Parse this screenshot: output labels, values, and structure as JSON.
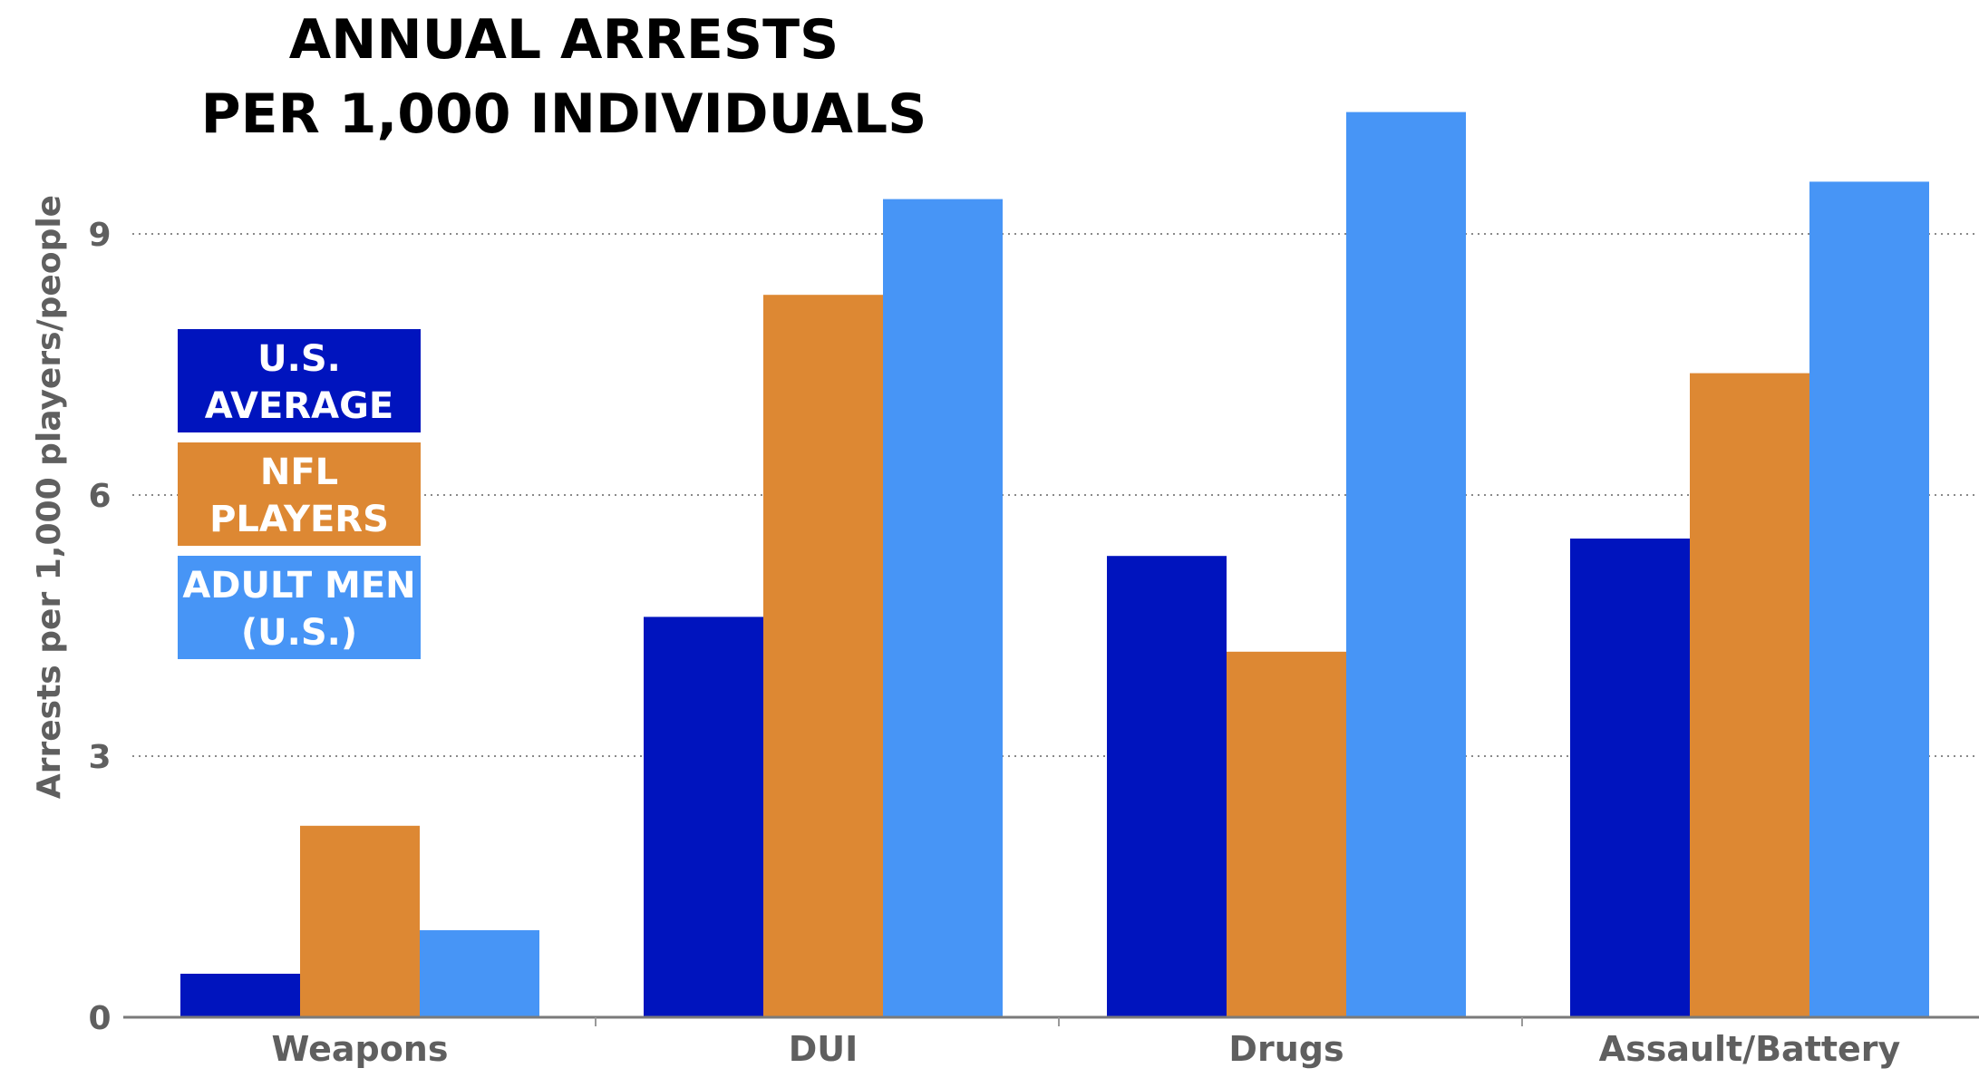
{
  "chart_data": {
    "type": "bar",
    "title": [
      "ANNUAL ARRESTS",
      "PER 1,000 INDIVIDUALS"
    ],
    "xlabel": "",
    "ylabel": "Arrests per 1,000 players/people",
    "ylim": [
      0,
      10.5
    ],
    "yticks": [
      0,
      3,
      6,
      9
    ],
    "grid": "horizontal dotted",
    "legend_placement": "left, boxed",
    "categories": [
      "Weapons",
      "DUI",
      "Drugs",
      "Assault/Battery"
    ],
    "series": [
      {
        "name": "U.S. AVERAGE",
        "legend_lines": [
          "U.S.",
          "AVERAGE"
        ],
        "color": "#0014be",
        "values": [
          0.5,
          4.6,
          5.3,
          5.5
        ]
      },
      {
        "name": "NFL PLAYERS",
        "legend_lines": [
          "NFL",
          "PLAYERS"
        ],
        "color": "#dd8833",
        "values": [
          2.2,
          8.3,
          4.2,
          7.4
        ]
      },
      {
        "name": "ADULT MEN (U.S.)",
        "legend_lines": [
          "ADULT MEN",
          "(U.S.)"
        ],
        "color": "#4795f6",
        "values": [
          1.0,
          9.4,
          10.4,
          9.6
        ]
      }
    ]
  }
}
